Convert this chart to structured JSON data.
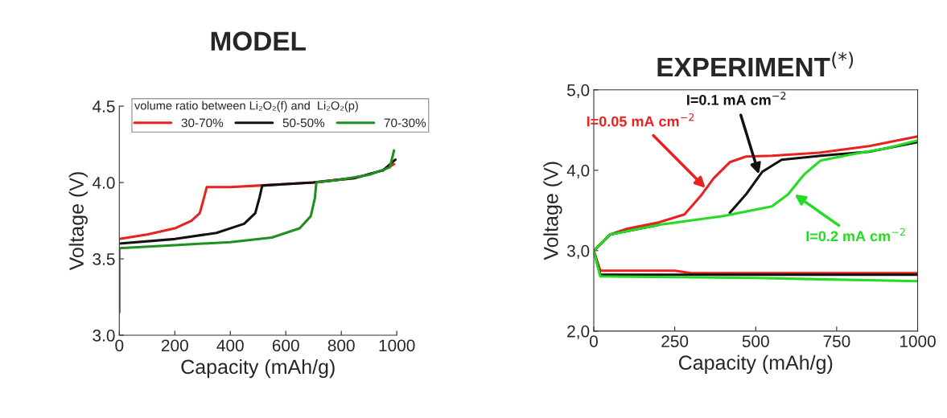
{
  "chart_data": [
    {
      "type": "line",
      "title": "MODEL",
      "xlabel": "Capacity (mAh/g)",
      "ylabel": "Voltage (V)",
      "legend_title": "volume ratio between Li₂O₂(f) and  Li₂O₂(p)",
      "legend": "top",
      "grid": false,
      "xlim": [
        0,
        1000
      ],
      "xticks": [
        0,
        200,
        400,
        600,
        800,
        1000
      ],
      "ylim": [
        3.0,
        4.5
      ],
      "yticks": [
        {
          "value": 3.0,
          "label": "3.0"
        },
        {
          "value": 3.5,
          "label": "3.5"
        },
        {
          "value": 4.0,
          "label": "4.0"
        },
        {
          "value": 4.5,
          "label": "4.5"
        }
      ],
      "series": [
        {
          "name": "30-70%",
          "color": "#e8231f",
          "x": [
            0,
            100,
            200,
            260,
            290,
            305,
            315,
            400,
            500,
            600,
            700,
            850,
            950,
            990
          ],
          "values": [
            3.63,
            3.66,
            3.7,
            3.75,
            3.8,
            3.9,
            3.97,
            3.97,
            3.98,
            3.99,
            4.0,
            4.03,
            4.08,
            4.12
          ]
        },
        {
          "name": "50-50%",
          "color": "#111111",
          "x": [
            0,
            200,
            350,
            450,
            490,
            505,
            515,
            600,
            700,
            850,
            950,
            995
          ],
          "values": [
            3.6,
            3.63,
            3.67,
            3.73,
            3.8,
            3.9,
            3.98,
            3.99,
            4.0,
            4.03,
            4.08,
            4.15
          ]
        },
        {
          "name": "70-30%",
          "color": "#1f8f1f",
          "x": [
            0,
            0,
            200,
            400,
            550,
            650,
            690,
            705,
            710,
            800,
            900,
            975,
            990
          ],
          "values": [
            3.15,
            3.57,
            3.59,
            3.61,
            3.64,
            3.7,
            3.78,
            3.9,
            4.0,
            4.02,
            4.05,
            4.1,
            4.21
          ]
        }
      ]
    },
    {
      "type": "line",
      "title": "EXPERIMENT$^{(*)}$",
      "xlabel": "Capacity (mAh/g)",
      "ylabel": "Voltage (V)",
      "grid": false,
      "xlim": [
        0,
        1000
      ],
      "xticks": [
        0,
        250,
        500,
        750,
        1000
      ],
      "ylim": [
        2.0,
        5.0
      ],
      "yticks": [
        {
          "value": 2.0,
          "label": "2,0"
        },
        {
          "value": 3.0,
          "label": "3,0"
        },
        {
          "value": 4.0,
          "label": "4,0"
        },
        {
          "value": 5.0,
          "label": "5,0"
        }
      ],
      "series": [
        {
          "color": "#e8231f",
          "x": [
            0,
            50,
            100,
            200,
            280,
            330,
            370,
            420,
            470,
            550,
            700,
            850,
            1000
          ],
          "values": [
            3.0,
            3.2,
            3.27,
            3.35,
            3.45,
            3.68,
            3.9,
            4.1,
            4.17,
            4.18,
            4.22,
            4.3,
            4.42
          ]
        },
        {
          "color": "#111111",
          "x": [
            0,
            50,
            200,
            350,
            420,
            470,
            520,
            580,
            700,
            850,
            1000
          ],
          "values": [
            3.0,
            3.2,
            3.32,
            null,
            3.47,
            3.7,
            3.98,
            4.13,
            4.18,
            4.23,
            4.35
          ]
        },
        {
          "color": "#22dd22",
          "x": [
            0,
            50,
            200,
            400,
            550,
            600,
            650,
            700,
            800,
            900,
            1000
          ],
          "values": [
            3.0,
            3.2,
            3.32,
            3.43,
            3.55,
            3.7,
            3.95,
            4.12,
            4.2,
            4.27,
            4.37
          ]
        },
        {
          "color": "#e8231f",
          "x": [
            0,
            20,
            250,
            300,
            1000
          ],
          "values": [
            3.0,
            2.75,
            2.75,
            2.72,
            2.72
          ]
        },
        {
          "color": "#111111",
          "x": [
            0,
            20,
            1000
          ],
          "values": [
            3.0,
            2.7,
            2.7
          ]
        },
        {
          "color": "#22dd22",
          "x": [
            0,
            20,
            500,
            1000
          ],
          "values": [
            3.0,
            2.68,
            2.66,
            2.62
          ]
        }
      ],
      "annotations": [
        {
          "text": "I=0.05 mA cm$^{−2}$",
          "x": 345,
          "y": 3.78
        },
        {
          "text": "I=0.1 mA cm$^{−2}$",
          "x": 510,
          "y": 3.95
        },
        {
          "text": "I=0.2 mA cm$^{−2}$",
          "x": 620,
          "y": 3.7
        }
      ]
    }
  ]
}
